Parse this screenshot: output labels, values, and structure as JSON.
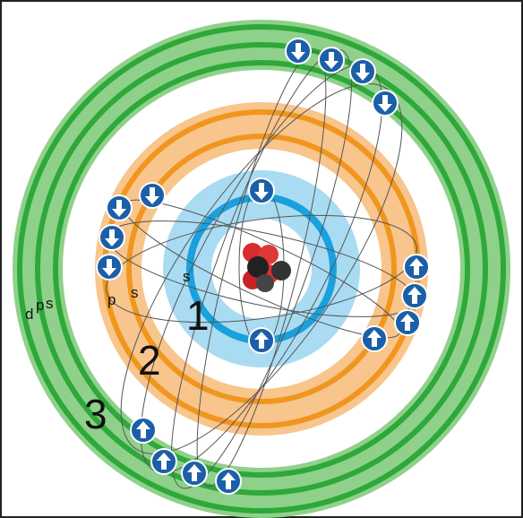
{
  "shells": [
    {
      "number": "1",
      "subshells": [
        "s"
      ]
    },
    {
      "number": "2",
      "subshells": [
        "p",
        "s"
      ]
    },
    {
      "number": "3",
      "subshells": [
        "d",
        "p",
        "s"
      ]
    }
  ]
}
